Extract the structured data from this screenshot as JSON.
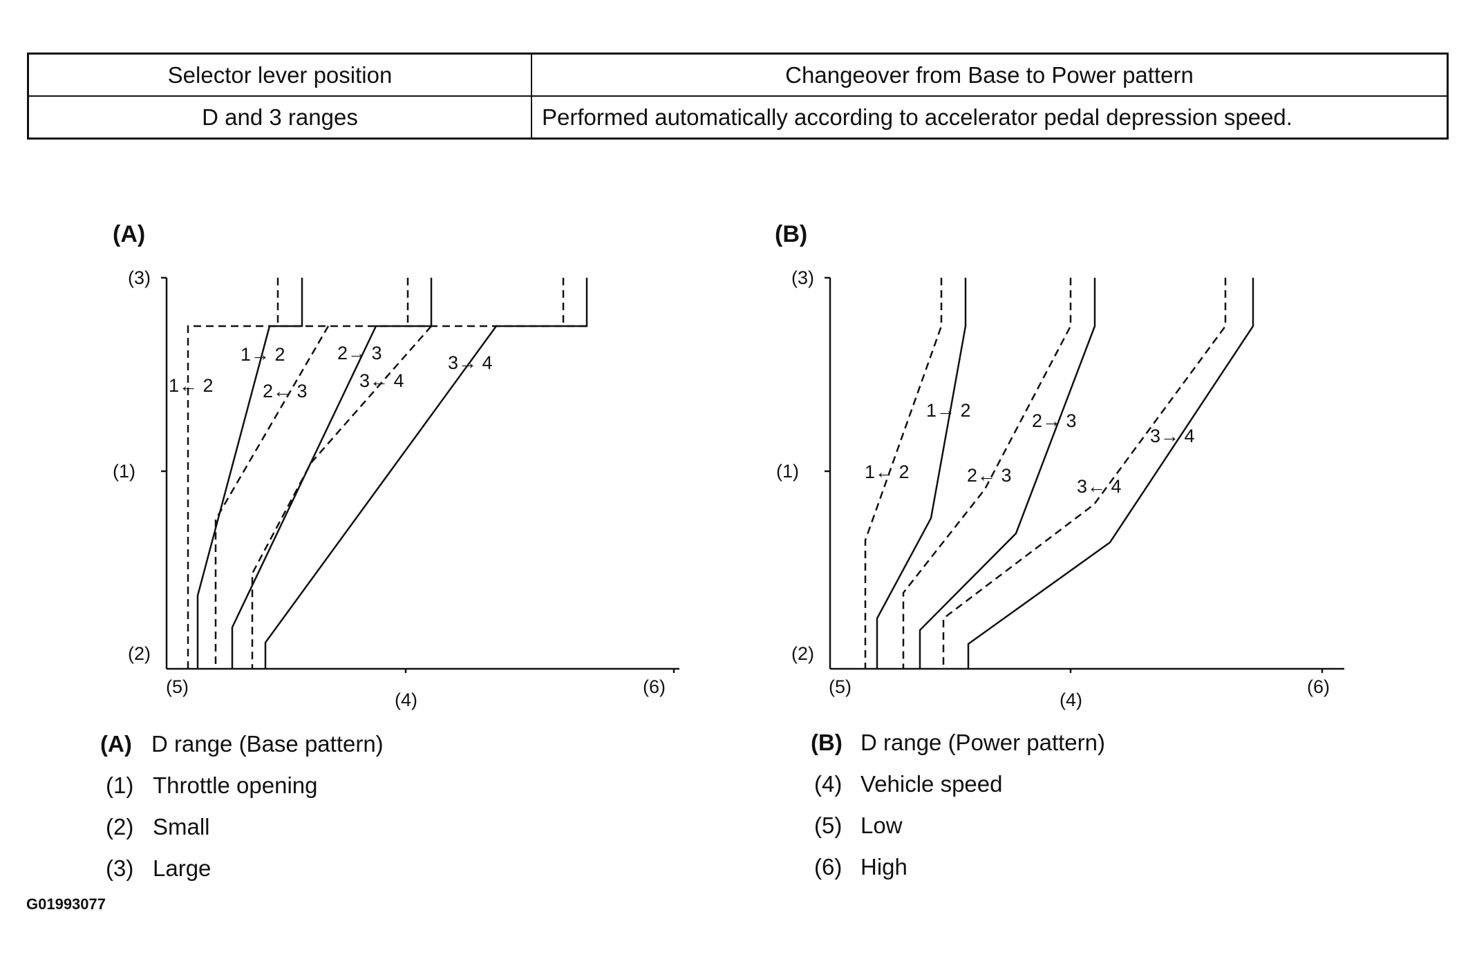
{
  "table": {
    "headers": [
      "Selector lever position",
      "Changeover from Base to Power pattern"
    ],
    "rows": [
      [
        "D and 3 ranges",
        "Performed automatically according to accelerator pedal depression speed."
      ]
    ]
  },
  "panels": {
    "A": {
      "label": "(A)",
      "top_label": "(3)",
      "mid_label": "(1)",
      "bottom_label": "(2)",
      "x_low": "(5)",
      "x_mid": "(4)",
      "x_high": "(6)",
      "shift_labels": {
        "up12": "1→ 2",
        "down12": "1← 2",
        "up23": "2→ 3",
        "down23": "2← 3",
        "up34": "3→ 4",
        "down34": "3← 4"
      }
    },
    "B": {
      "label": "(B)",
      "top_label": "(3)",
      "mid_label": "(1)",
      "bottom_label": "(2)",
      "x_low": "(5)",
      "x_mid": "(4)",
      "x_high": "(6)",
      "shift_labels": {
        "up12": "1→ 2",
        "down12": "1← 2",
        "up23": "2→ 3",
        "down23": "2← 3",
        "up34": "3→ 4",
        "down34": "3← 4"
      }
    }
  },
  "legend": {
    "left": [
      {
        "key": "(A)",
        "text": "D range (Base pattern)"
      },
      {
        "key": "(1)",
        "text": "Throttle opening"
      },
      {
        "key": "(2)",
        "text": "Small"
      },
      {
        "key": "(3)",
        "text": "Large"
      }
    ],
    "right": [
      {
        "key": "(B)",
        "text": "D range (Power pattern)"
      },
      {
        "key": "(4)",
        "text": "Vehicle speed"
      },
      {
        "key": "(5)",
        "text": "Low"
      },
      {
        "key": "(6)",
        "text": "High"
      }
    ]
  },
  "figure_id": "G01993077"
}
